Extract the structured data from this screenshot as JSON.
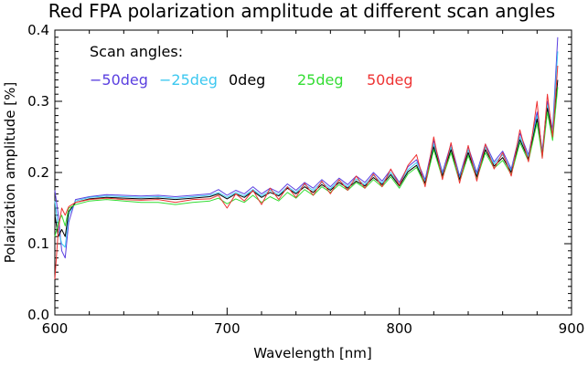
{
  "chart_data": {
    "type": "line",
    "title": "Red FPA polarization amplitude at different scan angles",
    "xlabel": "Wavelength [nm]",
    "ylabel": "Polarization amplitude [%]",
    "xlim": [
      600,
      900
    ],
    "ylim": [
      0.0,
      0.4
    ],
    "xticks": [
      600,
      700,
      800,
      900
    ],
    "xtick_labels": [
      "600",
      "700",
      "800",
      "900"
    ],
    "yticks": [
      0.0,
      0.1,
      0.2,
      0.3,
      0.4
    ],
    "ytick_labels": [
      "0.0",
      "0.1",
      "0.2",
      "0.3",
      "0.4"
    ],
    "grid": false,
    "legend": {
      "title": "Scan angles:",
      "position": "top-left",
      "entries": [
        {
          "label": "−50deg",
          "color": "#5a3fe0"
        },
        {
          "label": "−25deg",
          "color": "#3cc8f0"
        },
        {
          "label": "0deg",
          "color": "#000000"
        },
        {
          "label": "25deg",
          "color": "#33dd33"
        },
        {
          "label": "50deg",
          "color": "#ee3333"
        }
      ]
    },
    "series": [
      {
        "name": "-50deg",
        "color": "#5a3fe0",
        "x": [
          600,
          602,
          604,
          606,
          608,
          612,
          620,
          630,
          640,
          650,
          660,
          670,
          680,
          690,
          695,
          700,
          705,
          710,
          715,
          720,
          725,
          730,
          735,
          740,
          745,
          750,
          755,
          760,
          765,
          770,
          775,
          780,
          785,
          790,
          795,
          800,
          805,
          810,
          815,
          820,
          825,
          830,
          835,
          840,
          845,
          850,
          855,
          860,
          865,
          870,
          875,
          880,
          883,
          886,
          889,
          892
        ],
        "y": [
          0.175,
          0.14,
          0.09,
          0.08,
          0.13,
          0.162,
          0.166,
          0.169,
          0.168,
          0.167,
          0.168,
          0.166,
          0.168,
          0.17,
          0.176,
          0.168,
          0.175,
          0.17,
          0.18,
          0.17,
          0.178,
          0.172,
          0.184,
          0.175,
          0.186,
          0.178,
          0.19,
          0.18,
          0.192,
          0.183,
          0.195,
          0.186,
          0.2,
          0.188,
          0.204,
          0.186,
          0.208,
          0.218,
          0.19,
          0.245,
          0.2,
          0.24,
          0.195,
          0.236,
          0.2,
          0.24,
          0.215,
          0.23,
          0.205,
          0.255,
          0.225,
          0.285,
          0.23,
          0.3,
          0.26,
          0.39
        ]
      },
      {
        "name": "-25deg",
        "color": "#3cc8f0",
        "x": [
          600,
          602,
          604,
          606,
          608,
          612,
          620,
          630,
          640,
          650,
          660,
          670,
          680,
          690,
          695,
          700,
          705,
          710,
          715,
          720,
          725,
          730,
          735,
          740,
          745,
          750,
          755,
          760,
          765,
          770,
          775,
          780,
          785,
          790,
          795,
          800,
          805,
          810,
          815,
          820,
          825,
          830,
          835,
          840,
          845,
          850,
          855,
          860,
          865,
          870,
          875,
          880,
          883,
          886,
          889,
          892
        ],
        "y": [
          0.16,
          0.12,
          0.1,
          0.095,
          0.14,
          0.16,
          0.165,
          0.167,
          0.166,
          0.165,
          0.166,
          0.164,
          0.166,
          0.168,
          0.172,
          0.165,
          0.172,
          0.167,
          0.176,
          0.167,
          0.175,
          0.169,
          0.18,
          0.172,
          0.183,
          0.175,
          0.186,
          0.177,
          0.189,
          0.18,
          0.191,
          0.183,
          0.196,
          0.185,
          0.2,
          0.183,
          0.204,
          0.214,
          0.187,
          0.24,
          0.197,
          0.236,
          0.192,
          0.232,
          0.196,
          0.236,
          0.212,
          0.225,
          0.202,
          0.25,
          0.222,
          0.28,
          0.227,
          0.295,
          0.255,
          0.37
        ]
      },
      {
        "name": "0deg",
        "color": "#000000",
        "x": [
          600,
          602,
          604,
          606,
          608,
          612,
          620,
          630,
          640,
          650,
          660,
          670,
          680,
          690,
          695,
          700,
          705,
          710,
          715,
          720,
          725,
          730,
          735,
          740,
          745,
          750,
          755,
          760,
          765,
          770,
          775,
          780,
          785,
          790,
          795,
          800,
          805,
          810,
          815,
          820,
          825,
          830,
          835,
          840,
          845,
          850,
          855,
          860,
          865,
          870,
          875,
          880,
          883,
          886,
          889,
          892
        ],
        "y": [
          0.14,
          0.11,
          0.12,
          0.11,
          0.145,
          0.158,
          0.163,
          0.165,
          0.164,
          0.163,
          0.164,
          0.162,
          0.164,
          0.166,
          0.17,
          0.163,
          0.17,
          0.165,
          0.174,
          0.165,
          0.172,
          0.167,
          0.178,
          0.17,
          0.18,
          0.172,
          0.183,
          0.175,
          0.186,
          0.178,
          0.188,
          0.181,
          0.193,
          0.183,
          0.197,
          0.181,
          0.201,
          0.21,
          0.185,
          0.236,
          0.195,
          0.232,
          0.19,
          0.228,
          0.194,
          0.232,
          0.209,
          0.221,
          0.2,
          0.246,
          0.219,
          0.275,
          0.224,
          0.29,
          0.25,
          0.33
        ]
      },
      {
        "name": "25deg",
        "color": "#33dd33",
        "x": [
          600,
          602,
          604,
          606,
          608,
          612,
          620,
          630,
          640,
          650,
          660,
          670,
          680,
          690,
          695,
          700,
          705,
          710,
          715,
          720,
          725,
          730,
          735,
          740,
          745,
          750,
          755,
          760,
          765,
          770,
          775,
          780,
          785,
          790,
          795,
          800,
          805,
          810,
          815,
          820,
          825,
          830,
          835,
          840,
          845,
          850,
          855,
          860,
          865,
          870,
          875,
          880,
          883,
          886,
          889,
          892
        ],
        "y": [
          0.11,
          0.13,
          0.14,
          0.125,
          0.15,
          0.155,
          0.16,
          0.162,
          0.16,
          0.158,
          0.158,
          0.155,
          0.158,
          0.16,
          0.164,
          0.156,
          0.163,
          0.158,
          0.168,
          0.158,
          0.166,
          0.16,
          0.172,
          0.164,
          0.176,
          0.168,
          0.18,
          0.172,
          0.183,
          0.175,
          0.186,
          0.178,
          0.19,
          0.18,
          0.194,
          0.178,
          0.198,
          0.207,
          0.182,
          0.232,
          0.192,
          0.228,
          0.187,
          0.224,
          0.191,
          0.228,
          0.206,
          0.217,
          0.197,
          0.242,
          0.216,
          0.27,
          0.221,
          0.285,
          0.245,
          0.32
        ]
      },
      {
        "name": "50deg",
        "color": "#ee3333",
        "x": [
          600,
          602,
          604,
          606,
          608,
          612,
          620,
          630,
          640,
          650,
          660,
          670,
          680,
          690,
          695,
          700,
          705,
          710,
          715,
          720,
          725,
          730,
          735,
          740,
          745,
          750,
          755,
          760,
          765,
          770,
          775,
          780,
          785,
          790,
          795,
          800,
          805,
          810,
          815,
          820,
          825,
          830,
          835,
          840,
          845,
          850,
          855,
          860,
          865,
          870,
          875,
          880,
          883,
          886,
          889,
          892
        ],
        "y": [
          0.05,
          0.12,
          0.15,
          0.14,
          0.152,
          0.158,
          0.162,
          0.164,
          0.162,
          0.161,
          0.162,
          0.158,
          0.162,
          0.163,
          0.168,
          0.15,
          0.17,
          0.16,
          0.175,
          0.155,
          0.178,
          0.162,
          0.18,
          0.165,
          0.185,
          0.168,
          0.188,
          0.17,
          0.19,
          0.175,
          0.195,
          0.178,
          0.198,
          0.18,
          0.205,
          0.182,
          0.21,
          0.225,
          0.18,
          0.25,
          0.19,
          0.242,
          0.185,
          0.238,
          0.188,
          0.24,
          0.205,
          0.228,
          0.195,
          0.26,
          0.215,
          0.3,
          0.22,
          0.31,
          0.25,
          0.35
        ]
      }
    ]
  }
}
